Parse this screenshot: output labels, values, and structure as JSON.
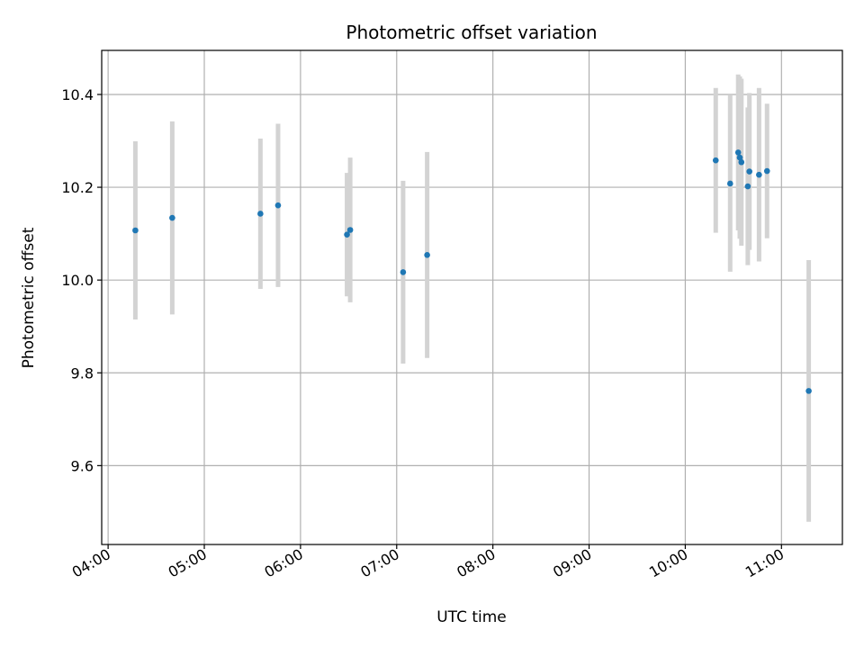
{
  "chart_data": {
    "type": "scatter",
    "title": "Photometric offset variation",
    "xlabel": "UTC time",
    "ylabel": "Photometric offset",
    "xlim": [
      "03:56",
      "11:38"
    ],
    "ylim": [
      9.43,
      10.495
    ],
    "x_ticks": [
      "04:00",
      "05:00",
      "06:00",
      "07:00",
      "08:00",
      "09:00",
      "10:00",
      "11:00"
    ],
    "y_ticks": [
      "9.6",
      "9.8",
      "10.0",
      "10.2",
      "10.4"
    ],
    "grid": true,
    "series": [
      {
        "marker_color": "#1f77b4",
        "errorbar_color": "#d3d3d3",
        "points": [
          {
            "x": "04:17",
            "y": 10.107,
            "err": 0.192
          },
          {
            "x": "04:40",
            "y": 10.134,
            "err": 0.208
          },
          {
            "x": "05:35",
            "y": 10.143,
            "err": 0.162
          },
          {
            "x": "05:46",
            "y": 10.161,
            "err": 0.176
          },
          {
            "x": "06:29",
            "y": 10.098,
            "err": 0.133
          },
          {
            "x": "06:31",
            "y": 10.108,
            "err": 0.156
          },
          {
            "x": "07:04",
            "y": 10.017,
            "err": 0.197
          },
          {
            "x": "07:19",
            "y": 10.054,
            "err": 0.222
          },
          {
            "x": "10:19",
            "y": 10.258,
            "err": 0.156
          },
          {
            "x": "10:28",
            "y": 10.208,
            "err": 0.19
          },
          {
            "x": "10:33",
            "y": 10.275,
            "err": 0.168
          },
          {
            "x": "10:34",
            "y": 10.264,
            "err": 0.175
          },
          {
            "x": "10:35",
            "y": 10.254,
            "err": 0.18
          },
          {
            "x": "10:39",
            "y": 10.202,
            "err": 0.17
          },
          {
            "x": "10:40",
            "y": 10.234,
            "err": 0.169
          },
          {
            "x": "10:46",
            "y": 10.227,
            "err": 0.187
          },
          {
            "x": "10:51",
            "y": 10.235,
            "err": 0.145
          },
          {
            "x": "11:17",
            "y": 9.761,
            "err": 0.282
          }
        ]
      }
    ]
  }
}
